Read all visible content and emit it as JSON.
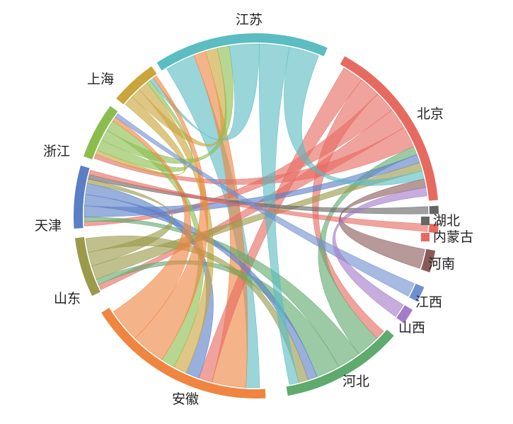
{
  "diagram": {
    "type": "chord",
    "nodes": [
      {
        "id": "jiangsu",
        "label": "江苏",
        "color": "#5bbcc2"
      },
      {
        "id": "beijing",
        "label": "北京",
        "color": "#e76a61"
      },
      {
        "id": "hubei",
        "label": "湖北",
        "color": "#666666"
      },
      {
        "id": "neimenggu",
        "label": "内蒙古",
        "color": "#e76a61"
      },
      {
        "id": "henan",
        "label": "河南",
        "color": "#8a5a5a"
      },
      {
        "id": "jiangxi",
        "label": "江西",
        "color": "#6f8fd0"
      },
      {
        "id": "shanxi",
        "label": "山西",
        "color": "#a37bc9"
      },
      {
        "id": "hebei",
        "label": "河北",
        "color": "#5faa6d"
      },
      {
        "id": "anhui",
        "label": "安徽",
        "color": "#ef8540"
      },
      {
        "id": "shandong",
        "label": "山东",
        "color": "#9a9a4a"
      },
      {
        "id": "tianjin",
        "label": "天津",
        "color": "#5b7ec6"
      },
      {
        "id": "zhejiang",
        "label": "浙江",
        "color": "#8bbd4e"
      },
      {
        "id": "shanghai",
        "label": "上海",
        "color": "#c9a53a"
      }
    ],
    "flows": [
      {
        "source": "jiangsu",
        "target": "anhui",
        "color": "#5bbcc2"
      },
      {
        "source": "anhui",
        "target": "jiangsu",
        "color": "#ef8540"
      },
      {
        "source": "beijing",
        "target": "anhui",
        "color": "#e76a61"
      },
      {
        "source": "beijing",
        "target": "hebei",
        "color": "#e76a61"
      },
      {
        "source": "beijing",
        "target": "tianjin",
        "color": "#e76a61"
      },
      {
        "source": "beijing",
        "target": "shandong",
        "color": "#e76a61"
      },
      {
        "source": "beijing",
        "target": "zhejiang",
        "color": "#e76a61"
      },
      {
        "source": "hebei",
        "target": "beijing",
        "color": "#5faa6d"
      },
      {
        "source": "hebei",
        "target": "tianjin",
        "color": "#5faa6d"
      },
      {
        "source": "hebei",
        "target": "shandong",
        "color": "#5faa6d"
      },
      {
        "source": "tianjin",
        "target": "beijing",
        "color": "#5b7ec6"
      },
      {
        "source": "tianjin",
        "target": "hebei",
        "color": "#5b7ec6"
      },
      {
        "source": "tianjin",
        "target": "anhui",
        "color": "#5b7ec6"
      },
      {
        "source": "shanghai",
        "target": "zhejiang",
        "color": "#c9a53a"
      },
      {
        "source": "shanghai",
        "target": "jiangsu",
        "color": "#c9a53a"
      },
      {
        "source": "shanghai",
        "target": "anhui",
        "color": "#c9a53a"
      },
      {
        "source": "zhejiang",
        "target": "shanghai",
        "color": "#8bbd4e"
      },
      {
        "source": "zhejiang",
        "target": "jiangsu",
        "color": "#8bbd4e"
      },
      {
        "source": "zhejiang",
        "target": "anhui",
        "color": "#8bbd4e"
      },
      {
        "source": "shandong",
        "target": "beijing",
        "color": "#9a9a4a"
      },
      {
        "source": "shandong",
        "target": "tianjin",
        "color": "#9a9a4a"
      },
      {
        "source": "shandong",
        "target": "hebei",
        "color": "#9a9a4a"
      },
      {
        "source": "jiangsu",
        "target": "shanghai",
        "color": "#5bbcc2"
      },
      {
        "source": "jiangsu",
        "target": "hebei",
        "color": "#5bbcc2"
      },
      {
        "source": "jiangsu",
        "target": "beijing",
        "color": "#5bbcc2"
      },
      {
        "source": "anhui",
        "target": "shanghai",
        "color": "#ef8540"
      },
      {
        "source": "anhui",
        "target": "zhejiang",
        "color": "#ef8540"
      },
      {
        "source": "hubei",
        "target": "tianjin",
        "color": "#666666"
      },
      {
        "source": "neimenggu",
        "target": "tianjin",
        "color": "#e76a61"
      },
      {
        "source": "henan",
        "target": "beijing",
        "color": "#8a5a5a"
      },
      {
        "source": "jiangxi",
        "target": "zhejiang",
        "color": "#6f8fd0"
      },
      {
        "source": "shanxi",
        "target": "beijing",
        "color": "#a37bc9"
      }
    ]
  }
}
